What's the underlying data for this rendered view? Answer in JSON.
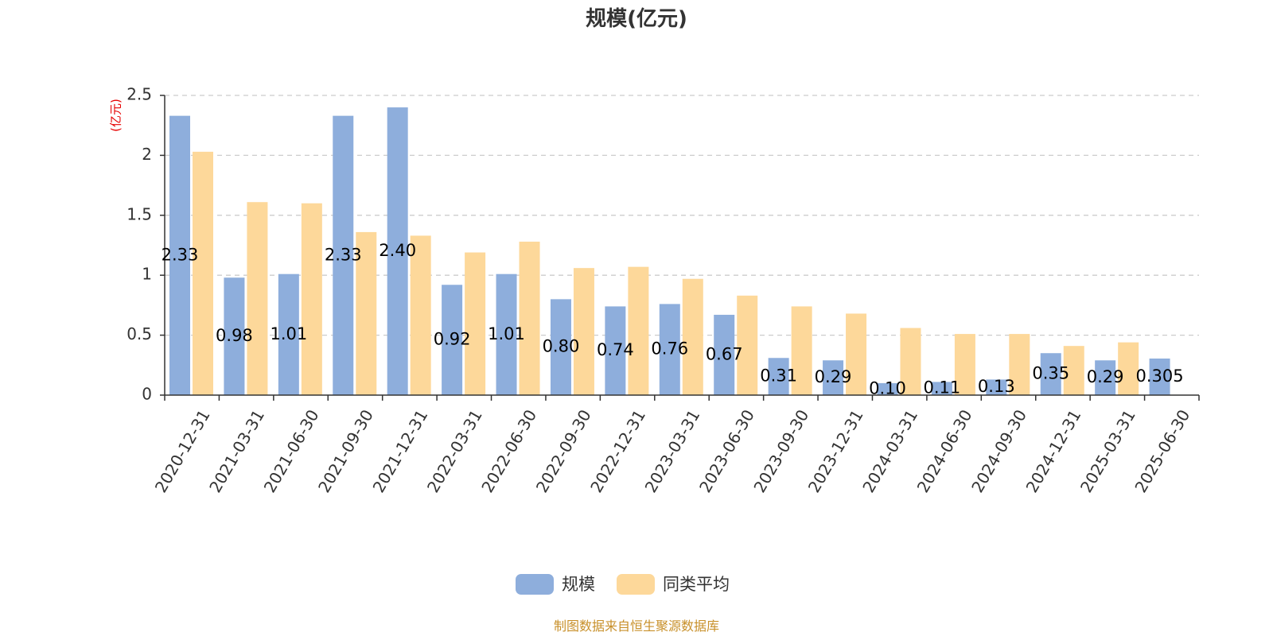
{
  "chart_data": {
    "type": "bar",
    "title": "规模(亿元)",
    "ylabel": "(亿元)",
    "xlabel": "",
    "ylim": [
      0,
      2.5
    ],
    "yticks": [
      "0",
      "0.5",
      "1",
      "1.5",
      "2",
      "2.5"
    ],
    "ytick_values": [
      0,
      0.5,
      1,
      1.5,
      2,
      2.5
    ],
    "grid": true,
    "legend_position": "bottom",
    "categories": [
      "2020-12-31",
      "2021-03-31",
      "2021-06-30",
      "2021-09-30",
      "2021-12-31",
      "2022-03-31",
      "2022-06-30",
      "2022-09-30",
      "2022-12-31",
      "2023-03-31",
      "2023-06-30",
      "2023-09-30",
      "2023-12-31",
      "2024-03-31",
      "2024-06-30",
      "2024-09-30",
      "2024-12-31",
      "2025-03-31",
      "2025-06-30"
    ],
    "series": [
      {
        "name": "规模",
        "color": "#8eaedc",
        "values": [
          2.33,
          0.98,
          1.01,
          2.33,
          2.4,
          0.92,
          1.01,
          0.8,
          0.74,
          0.76,
          0.67,
          0.31,
          0.29,
          0.1,
          0.11,
          0.13,
          0.35,
          0.29,
          0.305
        ],
        "labels": [
          "2.33",
          "0.98",
          "1.01",
          "2.33",
          "2.40",
          "0.92",
          "1.01",
          "0.80",
          "0.74",
          "0.76",
          "0.67",
          "0.31",
          "0.29",
          "0.10",
          "0.11",
          "0.13",
          "0.35",
          "0.29",
          "0.305"
        ]
      },
      {
        "name": "同类平均",
        "color": "#fdd89a",
        "values": [
          2.03,
          1.61,
          1.6,
          1.36,
          1.33,
          1.19,
          1.28,
          1.06,
          1.07,
          0.97,
          0.83,
          0.74,
          0.68,
          0.56,
          0.51,
          0.51,
          0.41,
          0.44,
          null
        ]
      }
    ]
  },
  "source": "制图数据来自恒生聚源数据库"
}
